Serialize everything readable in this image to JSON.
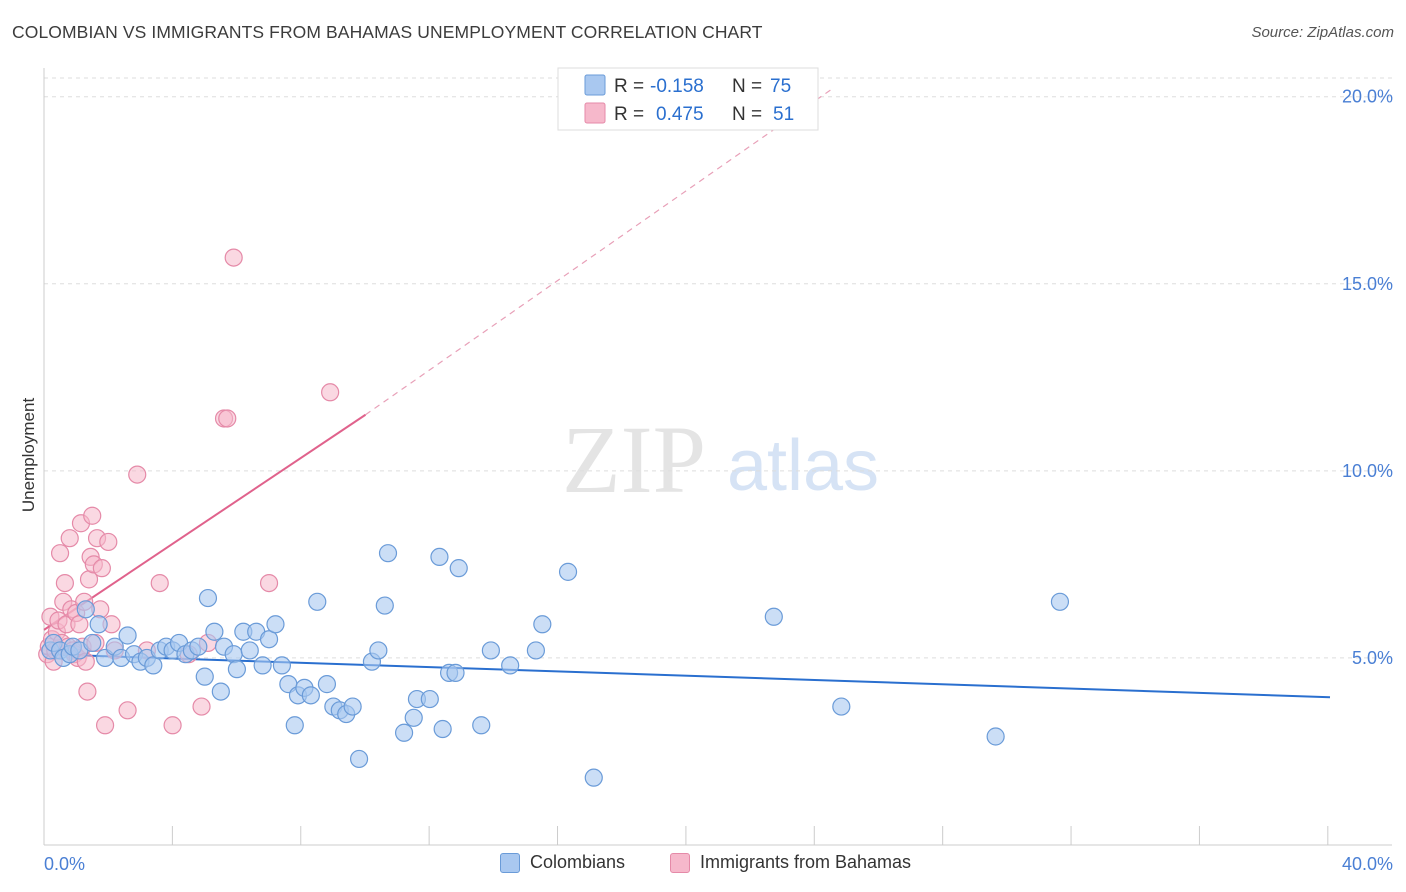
{
  "header": {
    "title": "COLOMBIAN VS IMMIGRANTS FROM BAHAMAS UNEMPLOYMENT CORRELATION CHART",
    "source": "Source: ZipAtlas.com"
  },
  "watermark": {
    "zip": "ZIP",
    "atlas": "atlas"
  },
  "colors": {
    "blue_fill": "#a9c8f0",
    "blue_stroke": "#6a9bd8",
    "blue_line": "#2a6fcf",
    "pink_fill": "#f6b8cb",
    "pink_stroke": "#e58aa8",
    "pink_line": "#e0628c",
    "axis_label": "#4a7fd4",
    "grid": "#dddddd"
  },
  "legend": {
    "r_label": "R =",
    "n_label": "N =",
    "entries": [
      {
        "r": "-0.158",
        "n": "75"
      },
      {
        "r": "0.475",
        "n": "51"
      }
    ]
  },
  "chart_data": {
    "type": "scatter",
    "title": "COLOMBIAN VS IMMIGRANTS FROM BAHAMAS UNEMPLOYMENT CORRELATION CHART",
    "xlabel": "",
    "ylabel": "Unemployment",
    "xlim": [
      0,
      40
    ],
    "ylim": [
      0,
      20.5
    ],
    "x_tick_labels": [
      "0.0%",
      "40.0%"
    ],
    "y_ticks": [
      5,
      10,
      15,
      20
    ],
    "y_tick_labels": [
      "5.0%",
      "10.0%",
      "15.0%",
      "20.0%"
    ],
    "grid": true,
    "series": [
      {
        "name": "Colombians",
        "r": -0.158,
        "n": 75,
        "trend": {
          "x0": 0,
          "y0": 5.1,
          "x1": 40,
          "y1": 3.95
        },
        "points": [
          [
            0.2,
            5.2
          ],
          [
            0.3,
            5.4
          ],
          [
            0.5,
            5.2
          ],
          [
            0.6,
            5.0
          ],
          [
            0.8,
            5.1
          ],
          [
            0.9,
            5.3
          ],
          [
            1.1,
            5.2
          ],
          [
            1.3,
            6.3
          ],
          [
            1.5,
            5.4
          ],
          [
            1.7,
            5.9
          ],
          [
            1.9,
            5.0
          ],
          [
            2.2,
            5.3
          ],
          [
            2.4,
            5.0
          ],
          [
            2.6,
            5.6
          ],
          [
            2.8,
            5.1
          ],
          [
            3.0,
            4.9
          ],
          [
            3.2,
            5.0
          ],
          [
            3.4,
            4.8
          ],
          [
            3.6,
            5.2
          ],
          [
            3.8,
            5.3
          ],
          [
            4.0,
            5.2
          ],
          [
            4.2,
            5.4
          ],
          [
            4.4,
            5.1
          ],
          [
            4.6,
            5.2
          ],
          [
            4.8,
            5.3
          ],
          [
            5.0,
            4.5
          ],
          [
            5.1,
            6.6
          ],
          [
            5.3,
            5.7
          ],
          [
            5.5,
            4.1
          ],
          [
            5.6,
            5.3
          ],
          [
            5.9,
            5.1
          ],
          [
            6.0,
            4.7
          ],
          [
            6.2,
            5.7
          ],
          [
            6.4,
            5.2
          ],
          [
            6.6,
            5.7
          ],
          [
            6.8,
            4.8
          ],
          [
            7.0,
            5.5
          ],
          [
            7.2,
            5.9
          ],
          [
            7.4,
            4.8
          ],
          [
            7.6,
            4.3
          ],
          [
            7.8,
            3.2
          ],
          [
            7.9,
            4.0
          ],
          [
            8.1,
            4.2
          ],
          [
            8.3,
            4.0
          ],
          [
            8.5,
            6.5
          ],
          [
            8.8,
            4.3
          ],
          [
            9.0,
            3.7
          ],
          [
            9.2,
            3.6
          ],
          [
            9.4,
            3.5
          ],
          [
            9.6,
            3.7
          ],
          [
            9.8,
            2.3
          ],
          [
            10.2,
            4.9
          ],
          [
            10.4,
            5.2
          ],
          [
            10.6,
            6.4
          ],
          [
            10.7,
            7.8
          ],
          [
            11.2,
            3.0
          ],
          [
            11.5,
            3.4
          ],
          [
            11.6,
            3.9
          ],
          [
            12.0,
            3.9
          ],
          [
            12.3,
            7.7
          ],
          [
            12.4,
            3.1
          ],
          [
            12.6,
            4.6
          ],
          [
            12.8,
            4.6
          ],
          [
            12.9,
            7.4
          ],
          [
            13.6,
            3.2
          ],
          [
            13.9,
            5.2
          ],
          [
            14.5,
            4.8
          ],
          [
            15.3,
            5.2
          ],
          [
            15.5,
            5.9
          ],
          [
            16.3,
            7.3
          ],
          [
            17.1,
            1.8
          ],
          [
            22.7,
            6.1
          ],
          [
            24.8,
            3.7
          ],
          [
            29.6,
            2.9
          ],
          [
            31.6,
            6.5
          ]
        ]
      },
      {
        "name": "Immigrants from Bahamas",
        "r": 0.475,
        "n": 51,
        "trend": {
          "x0": 0,
          "y0": 5.75,
          "x1": 10.0,
          "y1": 11.5
        },
        "trend_ext": {
          "x0": 10.0,
          "y0": 11.5,
          "x1": 24.5,
          "y1": 20.2
        },
        "points": [
          [
            0.1,
            5.1
          ],
          [
            0.15,
            5.3
          ],
          [
            0.2,
            6.1
          ],
          [
            0.25,
            5.5
          ],
          [
            0.3,
            4.9
          ],
          [
            0.35,
            5.2
          ],
          [
            0.4,
            5.7
          ],
          [
            0.45,
            6.0
          ],
          [
            0.5,
            7.8
          ],
          [
            0.55,
            5.4
          ],
          [
            0.6,
            6.5
          ],
          [
            0.65,
            7.0
          ],
          [
            0.7,
            5.9
          ],
          [
            0.75,
            5.3
          ],
          [
            0.8,
            8.2
          ],
          [
            0.85,
            6.3
          ],
          [
            0.9,
            5.2
          ],
          [
            0.95,
            5.1
          ],
          [
            1.0,
            6.2
          ],
          [
            1.05,
            5.0
          ],
          [
            1.1,
            5.9
          ],
          [
            1.15,
            8.6
          ],
          [
            1.2,
            5.3
          ],
          [
            1.25,
            6.5
          ],
          [
            1.3,
            4.9
          ],
          [
            1.35,
            4.1
          ],
          [
            1.4,
            7.1
          ],
          [
            1.45,
            7.7
          ],
          [
            1.5,
            8.8
          ],
          [
            1.55,
            7.5
          ],
          [
            1.6,
            5.4
          ],
          [
            1.65,
            8.2
          ],
          [
            1.75,
            6.3
          ],
          [
            1.8,
            7.4
          ],
          [
            1.9,
            3.2
          ],
          [
            2.0,
            8.1
          ],
          [
            2.1,
            5.9
          ],
          [
            2.2,
            5.2
          ],
          [
            2.6,
            3.6
          ],
          [
            2.9,
            9.9
          ],
          [
            3.2,
            5.2
          ],
          [
            3.6,
            7.0
          ],
          [
            4.0,
            3.2
          ],
          [
            4.5,
            5.1
          ],
          [
            4.9,
            3.7
          ],
          [
            5.1,
            5.4
          ],
          [
            5.6,
            11.4
          ],
          [
            5.7,
            11.4
          ],
          [
            5.9,
            15.7
          ],
          [
            7.0,
            7.0
          ],
          [
            8.9,
            12.1
          ]
        ]
      }
    ]
  },
  "bottom_legend": {
    "items": [
      {
        "label": "Colombians"
      },
      {
        "label": "Immigrants from Bahamas"
      }
    ]
  }
}
